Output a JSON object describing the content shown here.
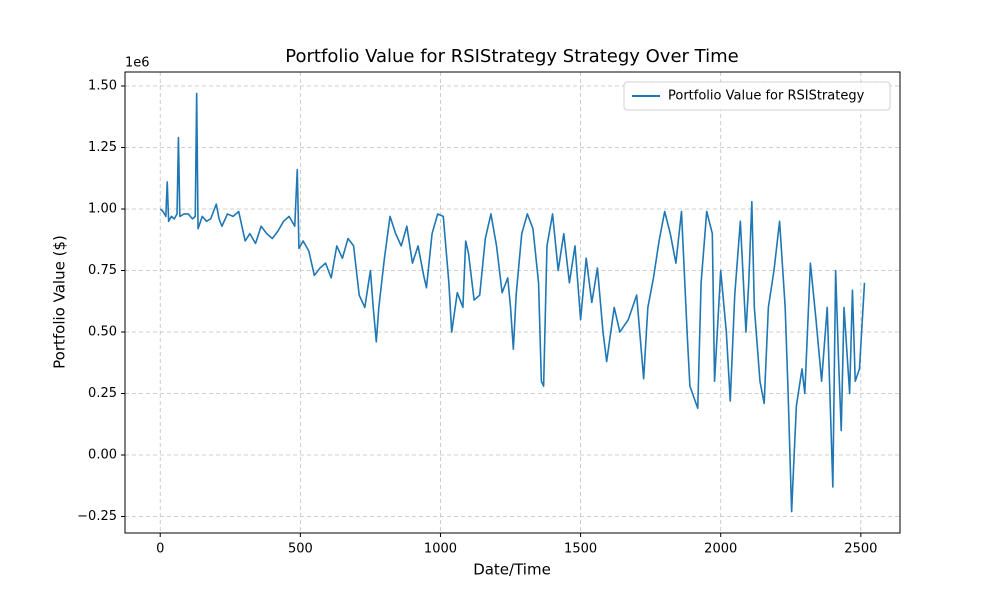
{
  "chart_data": {
    "type": "line",
    "title": "Portfolio Value for RSIStrategy Strategy Over Time",
    "x_label": "Date/Time",
    "y_label": "Portfolio Value ($)",
    "y_offset_label": "1e6",
    "x": [
      0,
      10,
      20,
      25,
      30,
      40,
      50,
      60,
      65,
      70,
      85,
      100,
      115,
      125,
      130,
      135,
      150,
      165,
      180,
      200,
      210,
      220,
      240,
      260,
      280,
      303,
      320,
      340,
      360,
      380,
      400,
      420,
      440,
      460,
      480,
      489,
      495,
      510,
      530,
      550,
      570,
      590,
      610,
      630,
      650,
      670,
      690,
      710,
      730,
      750,
      760,
      771,
      780,
      800,
      820,
      840,
      860,
      880,
      900,
      920,
      940,
      950,
      970,
      990,
      1010,
      1030,
      1040,
      1060,
      1080,
      1090,
      1100,
      1120,
      1140,
      1160,
      1180,
      1200,
      1220,
      1240,
      1250,
      1260,
      1270,
      1290,
      1310,
      1330,
      1350,
      1360,
      1368,
      1380,
      1400,
      1420,
      1440,
      1460,
      1480,
      1500,
      1520,
      1540,
      1560,
      1580,
      1593,
      1620,
      1640,
      1670,
      1700,
      1725,
      1740,
      1760,
      1780,
      1800,
      1820,
      1840,
      1860,
      1880,
      1890,
      1918,
      1930,
      1950,
      1970,
      1978,
      2000,
      2020,
      2034,
      2050,
      2070,
      2090,
      2100,
      2111,
      2120,
      2140,
      2155,
      2170,
      2190,
      2210,
      2230,
      2240,
      2253,
      2260,
      2270,
      2290,
      2300,
      2320,
      2340,
      2360,
      2380,
      2400,
      2410,
      2420,
      2430,
      2440,
      2460,
      2470,
      2480,
      2495,
      2513
    ],
    "series": [
      {
        "name": "Portfolio Value for RSIStrategy",
        "color": "#1f77b4",
        "values": [
          1.0,
          0.99,
          0.97,
          1.11,
          0.95,
          0.97,
          0.96,
          0.98,
          1.29,
          0.97,
          0.98,
          0.98,
          0.96,
          0.97,
          1.47,
          0.92,
          0.97,
          0.95,
          0.96,
          1.02,
          0.96,
          0.93,
          0.98,
          0.97,
          0.99,
          0.87,
          0.9,
          0.86,
          0.93,
          0.9,
          0.88,
          0.91,
          0.95,
          0.97,
          0.93,
          1.16,
          0.84,
          0.87,
          0.83,
          0.73,
          0.76,
          0.78,
          0.72,
          0.85,
          0.8,
          0.88,
          0.85,
          0.65,
          0.6,
          0.75,
          0.6,
          0.46,
          0.6,
          0.8,
          0.97,
          0.9,
          0.85,
          0.93,
          0.78,
          0.85,
          0.73,
          0.68,
          0.9,
          0.98,
          0.97,
          0.7,
          0.5,
          0.66,
          0.6,
          0.87,
          0.82,
          0.63,
          0.65,
          0.88,
          0.98,
          0.85,
          0.66,
          0.72,
          0.6,
          0.43,
          0.65,
          0.9,
          0.98,
          0.92,
          0.7,
          0.3,
          0.28,
          0.85,
          0.98,
          0.75,
          0.9,
          0.7,
          0.85,
          0.55,
          0.8,
          0.62,
          0.76,
          0.5,
          0.38,
          0.6,
          0.5,
          0.55,
          0.65,
          0.31,
          0.6,
          0.72,
          0.87,
          0.99,
          0.9,
          0.78,
          0.99,
          0.5,
          0.28,
          0.19,
          0.7,
          0.99,
          0.9,
          0.3,
          0.75,
          0.5,
          0.22,
          0.65,
          0.95,
          0.5,
          0.7,
          1.03,
          0.6,
          0.3,
          0.21,
          0.6,
          0.75,
          0.95,
          0.6,
          0.27,
          -0.23,
          -0.05,
          0.2,
          0.35,
          0.25,
          0.78,
          0.55,
          0.3,
          0.6,
          -0.13,
          0.75,
          0.4,
          0.1,
          0.6,
          0.25,
          0.67,
          0.3,
          0.35,
          0.7
        ]
      }
    ],
    "xlim": [
      -125.7,
      2639.7
    ],
    "ylim": [
      -0.317,
      1.557
    ],
    "xticks": [
      0,
      500,
      1000,
      1500,
      2000,
      2500
    ],
    "yticks": [
      {
        "value": -0.25,
        "label": "−0.25"
      },
      {
        "value": 0,
        "label": "0.00"
      },
      {
        "value": 0.25,
        "label": "0.25"
      },
      {
        "value": 0.5,
        "label": "0.50"
      },
      {
        "value": 0.75,
        "label": "0.75"
      },
      {
        "value": 1.0,
        "label": "1.00"
      },
      {
        "value": 1.25,
        "label": "1.25"
      },
      {
        "value": 1.5,
        "label": "1.50"
      }
    ],
    "grid": true,
    "legend": "upper right"
  }
}
